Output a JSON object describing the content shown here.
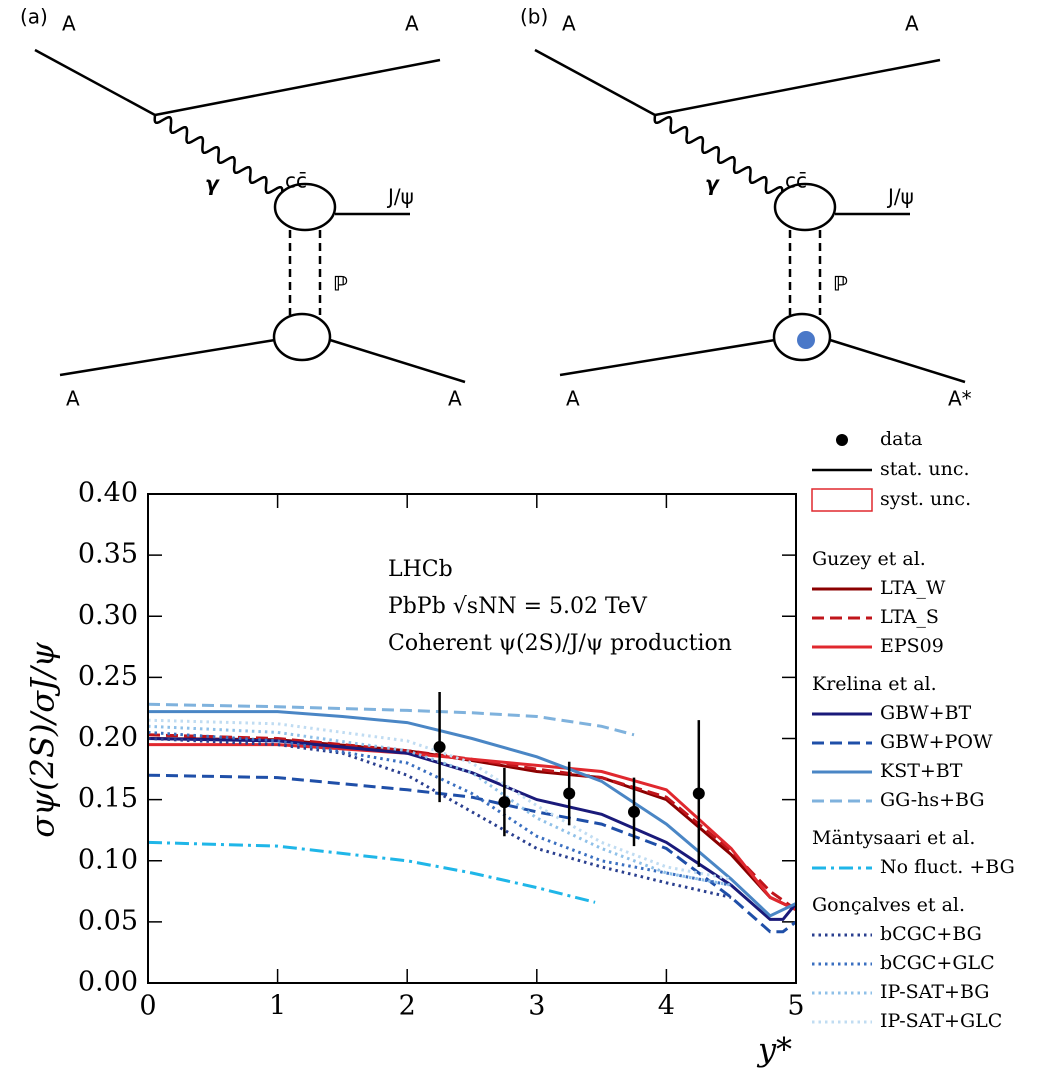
{
  "diagrams": [
    {
      "label": "(a)",
      "beam_in": "A",
      "beam_out": "A",
      "photon": "γ",
      "pair": "cc̄",
      "meson": "J/ψ",
      "pomeron": "ℙ",
      "target_in": "A",
      "target_out": "A"
    },
    {
      "label": "(b)",
      "beam_in": "A",
      "beam_out": "A",
      "photon": "γ",
      "pair": "cc̄",
      "meson": "J/ψ",
      "pomeron": "ℙ",
      "target_in": "A",
      "target_out": "A*"
    }
  ],
  "chart_data": {
    "type": "line",
    "annotations": [
      "LHCb",
      "PbPb √sNN = 5.02 TeV",
      "Coherent ψ(2S)/J/ψ production"
    ],
    "x_label": "y*",
    "y_label": "σψ(2S)/σJ/ψ",
    "xlim": [
      0,
      5
    ],
    "ylim": [
      0,
      0.4
    ],
    "xticks": [
      0,
      1,
      2,
      3,
      4,
      5
    ],
    "yticks": [
      {
        "value": 0,
        "label": "0.00"
      },
      {
        "value": 0.05,
        "label": "0.05"
      },
      {
        "value": 0.1,
        "label": "0.10"
      },
      {
        "value": 0.15,
        "label": "0.15"
      },
      {
        "value": 0.2,
        "label": "0.20"
      },
      {
        "value": 0.25,
        "label": "0.25"
      },
      {
        "value": 0.3,
        "label": "0.30"
      },
      {
        "value": 0.35,
        "label": "0.35"
      },
      {
        "value": 0.4,
        "label": "0.40"
      }
    ],
    "data": {
      "name": "data",
      "color": "#000000",
      "x": [
        2.25,
        2.75,
        3.25,
        3.75,
        4.25
      ],
      "values": [
        0.193,
        0.148,
        0.155,
        0.14,
        0.155
      ],
      "errors": [
        0.045,
        0.028,
        0.026,
        0.028,
        0.06
      ]
    },
    "stat_label": "stat. unc.",
    "syst_label": "syst. unc.",
    "syst_color": "#e0282e",
    "model_groups": [
      {
        "title": "Guzey et al.",
        "series": [
          {
            "name": "LTA_W",
            "color": "#8b0000",
            "dash": "solid",
            "x": [
              0,
              1,
              2,
              2.5,
              3,
              3.5,
              4,
              4.5,
              4.8,
              5
            ],
            "values": [
              0.2,
              0.199,
              0.19,
              0.182,
              0.173,
              0.168,
              0.15,
              0.105,
              0.07,
              0.06
            ]
          },
          {
            "name": "LTA_S",
            "color": "#c0151b",
            "dash": "dashed",
            "x": [
              0,
              1,
              2,
              2.5,
              3,
              3.5,
              4,
              4.5,
              4.8,
              5
            ],
            "values": [
              0.203,
              0.2,
              0.19,
              0.183,
              0.175,
              0.168,
              0.152,
              0.108,
              0.075,
              0.06
            ]
          },
          {
            "name": "EPS09",
            "color": "#e0282e",
            "dash": "solid",
            "x": [
              0,
              1,
              2,
              2.5,
              3,
              3.5,
              4,
              4.5,
              4.8,
              5
            ],
            "values": [
              0.195,
              0.195,
              0.188,
              0.183,
              0.178,
              0.173,
              0.158,
              0.11,
              0.07,
              0.06
            ]
          }
        ]
      },
      {
        "title": "Krelina et al.",
        "series": [
          {
            "name": "GBW+BT",
            "color": "#1a1a7a",
            "dash": "solid",
            "x": [
              0,
              1,
              2,
              2.5,
              3,
              3.5,
              4,
              4.5,
              4.8,
              4.9,
              5
            ],
            "values": [
              0.2,
              0.198,
              0.188,
              0.172,
              0.15,
              0.138,
              0.115,
              0.08,
              0.052,
              0.052,
              0.065
            ]
          },
          {
            "name": "GBW+POW",
            "color": "#1f4fa8",
            "dash": "dashed",
            "x": [
              0,
              1,
              2,
              2.5,
              3,
              3.5,
              4,
              4.5,
              4.8,
              4.9,
              5
            ],
            "values": [
              0.17,
              0.168,
              0.158,
              0.152,
              0.14,
              0.13,
              0.11,
              0.07,
              0.042,
              0.042,
              0.05
            ]
          },
          {
            "name": "KST+BT",
            "color": "#4a86c5",
            "dash": "solid",
            "x": [
              0,
              1,
              1.5,
              2,
              2.5,
              3,
              3.5,
              4,
              4.5,
              4.8,
              5
            ],
            "values": [
              0.222,
              0.222,
              0.218,
              0.213,
              0.2,
              0.185,
              0.165,
              0.13,
              0.085,
              0.055,
              0.065
            ]
          },
          {
            "name": "GG-hs+BG",
            "color": "#7fb2dd",
            "dash": "dashed",
            "x": [
              0,
              1,
              2,
              2.5,
              3,
              3.5,
              3.75
            ],
            "values": [
              0.228,
              0.226,
              0.223,
              0.221,
              0.218,
              0.21,
              0.203
            ]
          }
        ]
      },
      {
        "title": "Mäntysaari et al.",
        "series": [
          {
            "name": "No fluct. +BG",
            "color": "#1fb6e8",
            "dash": "dashdot",
            "x": [
              0,
              1,
              2,
              2.5,
              3,
              3.45
            ],
            "values": [
              0.115,
              0.112,
              0.1,
              0.09,
              0.078,
              0.066
            ]
          }
        ]
      },
      {
        "title": "Gonçalves et al.",
        "series": [
          {
            "name": "bCGC+BG",
            "color": "#2a3f8f",
            "dash": "dotted",
            "x": [
              0,
              1,
              1.5,
              2,
              2.5,
              3,
              3.5,
              4,
              4.5
            ],
            "values": [
              0.2,
              0.195,
              0.188,
              0.17,
              0.14,
              0.11,
              0.095,
              0.082,
              0.07
            ]
          },
          {
            "name": "bCGC+GLC",
            "color": "#3a6fc0",
            "dash": "dotted",
            "x": [
              0,
              1,
              2,
              2.5,
              3,
              3.5,
              4,
              4.5
            ],
            "values": [
              0.205,
              0.198,
              0.18,
              0.155,
              0.12,
              0.1,
              0.09,
              0.08
            ]
          },
          {
            "name": "IP-SAT+BG",
            "color": "#8fc0e8",
            "dash": "dotted",
            "x": [
              0,
              1,
              2,
              2.5,
              3,
              3.5,
              4,
              4.5
            ],
            "values": [
              0.21,
              0.205,
              0.19,
              0.172,
              0.135,
              0.11,
              0.09,
              0.08
            ]
          },
          {
            "name": "IP-SAT+GLC",
            "color": "#c0dcf2",
            "dash": "dotted",
            "x": [
              0,
              1,
              2,
              2.5,
              3,
              3.5,
              4,
              4.5
            ],
            "values": [
              0.215,
              0.212,
              0.198,
              0.18,
              0.145,
              0.115,
              0.095,
              0.085
            ]
          }
        ]
      }
    ]
  }
}
